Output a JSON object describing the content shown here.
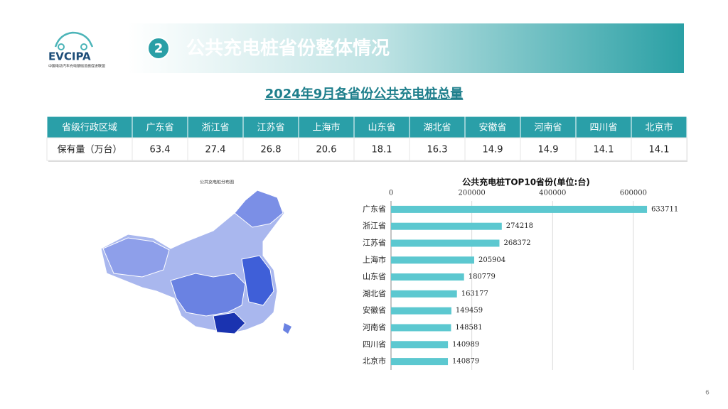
{
  "logo": {
    "name": "EVCIPA",
    "org": "中国电动汽车充电基础设施促进联盟"
  },
  "header": {
    "number": "2",
    "title": "公共充电桩省份整体情况"
  },
  "subtitle": "2024年9月各省份公共充电桩总量",
  "table": {
    "header": [
      "省级行政区域",
      "广东省",
      "浙江省",
      "江苏省",
      "上海市",
      "山东省",
      "湖北省",
      "安徽省",
      "河南省",
      "四川省",
      "北京市"
    ],
    "rows": [
      [
        "保有量（万台）",
        63.4,
        27.4,
        26.8,
        20.6,
        18.1,
        16.3,
        14.9,
        14.9,
        14.1,
        14.1
      ]
    ]
  },
  "map": {
    "title": "公共充电桩分布图"
  },
  "chart_data": {
    "type": "bar",
    "orientation": "horizontal",
    "title": "公共充电桩TOP10省份(单位:台)",
    "categories": [
      "广东省",
      "浙江省",
      "江苏省",
      "上海市",
      "山东省",
      "湖北省",
      "安徽省",
      "河南省",
      "四川省",
      "北京市"
    ],
    "values": [
      633711,
      274218,
      268372,
      205904,
      180779,
      163177,
      149459,
      148581,
      140989,
      140879
    ],
    "color": "#5cc8d0",
    "xlim": [
      0,
      660000
    ],
    "xticks": [
      0,
      200000,
      400000,
      600000
    ],
    "grid": true
  },
  "page_number": "6"
}
